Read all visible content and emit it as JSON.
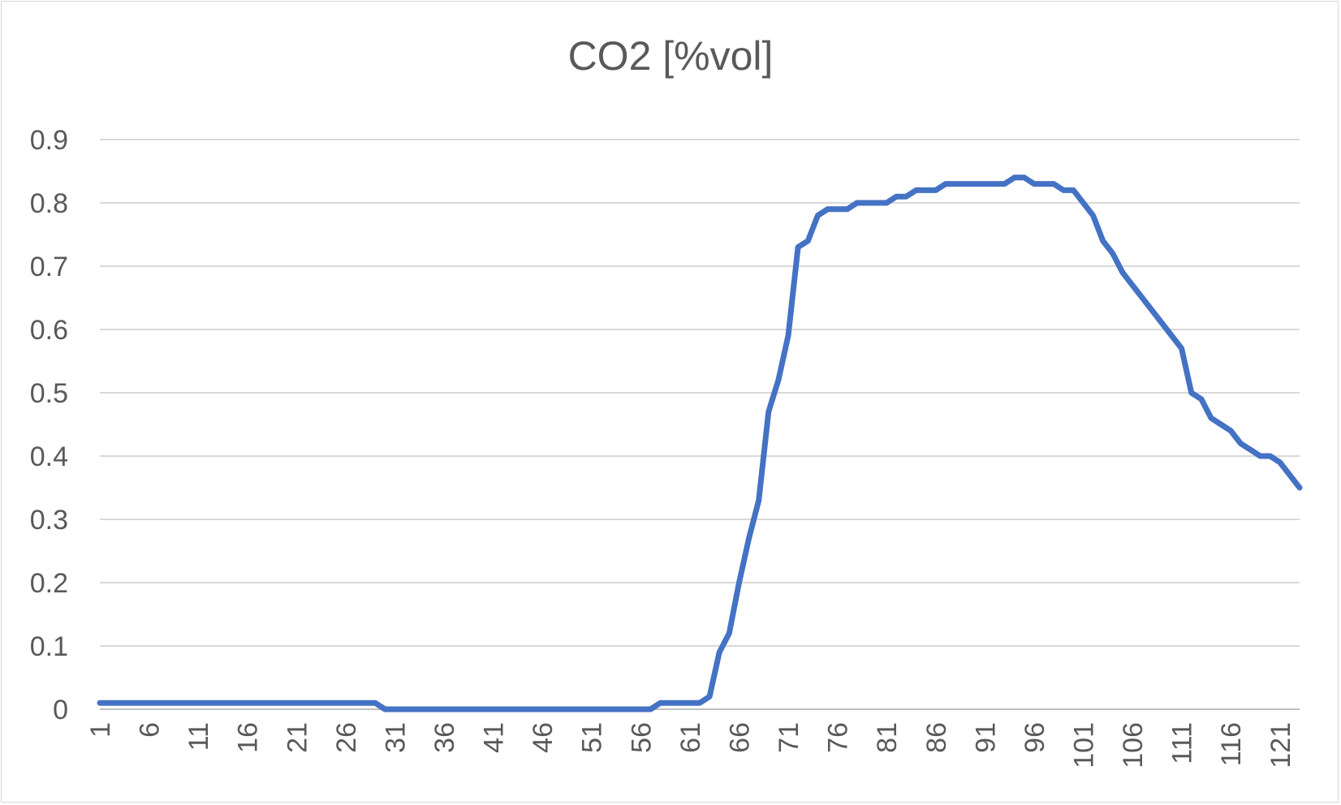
{
  "chart_data": {
    "type": "line",
    "title": "CO2 [%vol]",
    "xlabel": "",
    "ylabel": "",
    "ylim": [
      0,
      0.9
    ],
    "yticks": [
      "0",
      "0.1",
      "0.2",
      "0.3",
      "0.4",
      "0.5",
      "0.6",
      "0.7",
      "0.8",
      "0.9"
    ],
    "x_range": [
      1,
      123
    ],
    "xticks": [
      "1",
      "6",
      "11",
      "16",
      "21",
      "26",
      "31",
      "36",
      "41",
      "46",
      "51",
      "56",
      "61",
      "66",
      "71",
      "76",
      "81",
      "86",
      "91",
      "96",
      "101",
      "106",
      "111",
      "116",
      "121"
    ],
    "grid": true,
    "legend": "none",
    "series": [
      {
        "color": "#4472c4",
        "x": [
          1,
          2,
          3,
          4,
          5,
          6,
          7,
          8,
          9,
          10,
          11,
          12,
          13,
          14,
          15,
          16,
          17,
          18,
          19,
          20,
          21,
          22,
          23,
          24,
          25,
          26,
          27,
          28,
          29,
          30,
          31,
          32,
          33,
          34,
          35,
          36,
          37,
          38,
          39,
          40,
          41,
          42,
          43,
          44,
          45,
          46,
          47,
          48,
          49,
          50,
          51,
          52,
          53,
          54,
          55,
          56,
          57,
          58,
          59,
          60,
          61,
          62,
          63,
          64,
          65,
          66,
          67,
          68,
          69,
          70,
          71,
          72,
          73,
          74,
          75,
          76,
          77,
          78,
          79,
          80,
          81,
          82,
          83,
          84,
          85,
          86,
          87,
          88,
          89,
          90,
          91,
          92,
          93,
          94,
          95,
          96,
          97,
          98,
          99,
          100,
          101,
          102,
          103,
          104,
          105,
          106,
          107,
          108,
          109,
          110,
          111,
          112,
          113,
          114,
          115,
          116,
          117,
          118,
          119,
          120,
          121,
          122,
          123
        ],
        "values": [
          0.01,
          0.01,
          0.01,
          0.01,
          0.01,
          0.01,
          0.01,
          0.01,
          0.01,
          0.01,
          0.01,
          0.01,
          0.01,
          0.01,
          0.01,
          0.01,
          0.01,
          0.01,
          0.01,
          0.01,
          0.01,
          0.01,
          0.01,
          0.01,
          0.01,
          0.01,
          0.01,
          0.01,
          0.01,
          0.0,
          0.0,
          0.0,
          0.0,
          0.0,
          0.0,
          0.0,
          0.0,
          0.0,
          0.0,
          0.0,
          0.0,
          0.0,
          0.0,
          0.0,
          0.0,
          0.0,
          0.0,
          0.0,
          0.0,
          0.0,
          0.0,
          0.0,
          0.0,
          0.0,
          0.0,
          0.0,
          0.0,
          0.01,
          0.01,
          0.01,
          0.01,
          0.01,
          0.02,
          0.09,
          0.12,
          0.2,
          0.27,
          0.33,
          0.47,
          0.52,
          0.59,
          0.73,
          0.74,
          0.78,
          0.79,
          0.79,
          0.79,
          0.8,
          0.8,
          0.8,
          0.8,
          0.81,
          0.81,
          0.82,
          0.82,
          0.82,
          0.83,
          0.83,
          0.83,
          0.83,
          0.83,
          0.83,
          0.83,
          0.84,
          0.84,
          0.83,
          0.83,
          0.83,
          0.82,
          0.82,
          0.8,
          0.78,
          0.74,
          0.72,
          0.69,
          0.67,
          0.65,
          0.63,
          0.61,
          0.59,
          0.57,
          0.5,
          0.49,
          0.46,
          0.45,
          0.44,
          0.42,
          0.41,
          0.4,
          0.4,
          0.39,
          0.37,
          0.35
        ]
      }
    ]
  }
}
